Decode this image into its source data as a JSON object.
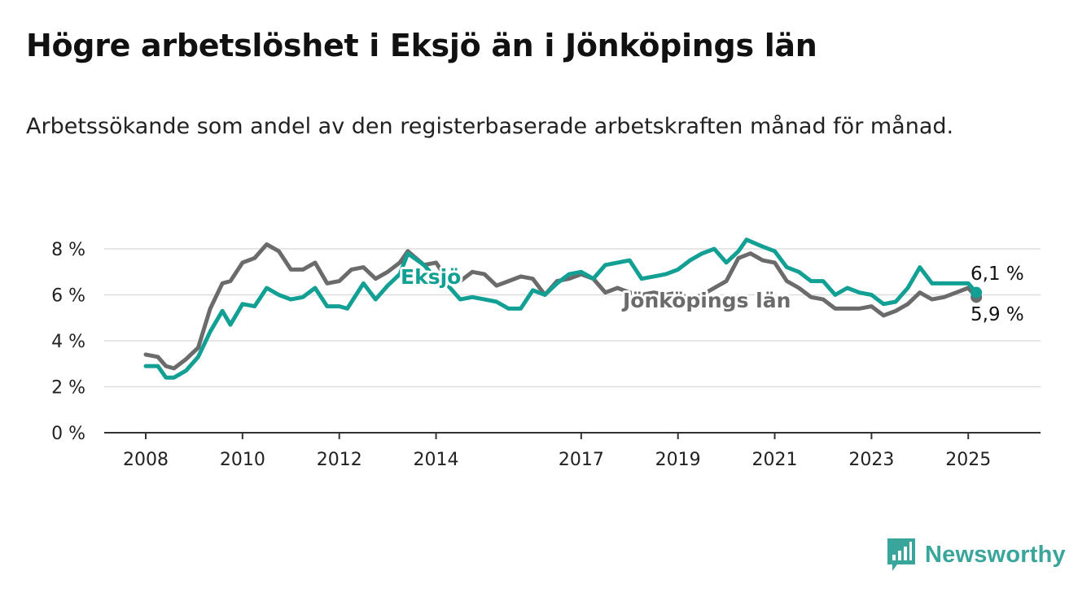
{
  "title": "Högre arbetslöshet i Eksjö än i Jönköpings län",
  "subtitle": "Arbetssökande som andel av den registerbaserade arbetskraften månad för månad.",
  "brand": {
    "name": "Newsworthy",
    "icon": "newsworthy-logo-icon",
    "color": "#3aa59a"
  },
  "chart_data": {
    "type": "line",
    "title": "Högre arbetslöshet i Eksjö än i Jönköpings län",
    "xlabel": "",
    "ylabel": "",
    "ylim": [
      0,
      8
    ],
    "xlim": [
      "2008-01",
      "2025-06"
    ],
    "x_ticks": [
      "2008",
      "2010",
      "2012",
      "2014",
      "2017",
      "2019",
      "2021",
      "2023",
      "2025"
    ],
    "y_ticks": [
      "0 %",
      "2 %",
      "4 %",
      "6 %",
      "8 %"
    ],
    "grid": true,
    "legend": "inline labels",
    "series": [
      {
        "name": "Eksjö",
        "color": "#13a094",
        "end_label": "6,1 %",
        "points": [
          [
            "2008-01",
            2.9
          ],
          [
            "2008-04",
            2.9
          ],
          [
            "2008-06",
            2.4
          ],
          [
            "2008-08",
            2.4
          ],
          [
            "2008-11",
            2.7
          ],
          [
            "2009-02",
            3.3
          ],
          [
            "2009-05",
            4.4
          ],
          [
            "2009-08",
            5.3
          ],
          [
            "2009-10",
            4.7
          ],
          [
            "2010-01",
            5.6
          ],
          [
            "2010-04",
            5.5
          ],
          [
            "2010-07",
            6.3
          ],
          [
            "2010-10",
            6.0
          ],
          [
            "2011-01",
            5.8
          ],
          [
            "2011-04",
            5.9
          ],
          [
            "2011-07",
            6.3
          ],
          [
            "2011-10",
            5.5
          ],
          [
            "2012-01",
            5.5
          ],
          [
            "2012-03",
            5.4
          ],
          [
            "2012-07",
            6.5
          ],
          [
            "2012-10",
            5.8
          ],
          [
            "2013-01",
            6.4
          ],
          [
            "2013-04",
            6.9
          ],
          [
            "2013-06",
            7.8
          ],
          [
            "2013-10",
            7.3
          ],
          [
            "2014-01",
            6.7
          ],
          [
            "2014-04",
            6.4
          ],
          [
            "2014-07",
            5.8
          ],
          [
            "2014-10",
            5.9
          ],
          [
            "2015-01",
            5.8
          ],
          [
            "2015-04",
            5.7
          ],
          [
            "2015-07",
            5.4
          ],
          [
            "2015-10",
            5.4
          ],
          [
            "2016-01",
            6.2
          ],
          [
            "2016-04",
            6.0
          ],
          [
            "2016-07",
            6.5
          ],
          [
            "2016-10",
            6.9
          ],
          [
            "2017-01",
            7.0
          ],
          [
            "2017-04",
            6.7
          ],
          [
            "2017-07",
            7.3
          ],
          [
            "2017-10",
            7.4
          ],
          [
            "2018-01",
            7.5
          ],
          [
            "2018-04",
            6.7
          ],
          [
            "2018-07",
            6.8
          ],
          [
            "2018-10",
            6.9
          ],
          [
            "2019-01",
            7.1
          ],
          [
            "2019-04",
            7.5
          ],
          [
            "2019-07",
            7.8
          ],
          [
            "2019-10",
            8.0
          ],
          [
            "2020-01",
            7.4
          ],
          [
            "2020-04",
            7.9
          ],
          [
            "2020-06",
            8.4
          ],
          [
            "2020-10",
            8.1
          ],
          [
            "2021-01",
            7.9
          ],
          [
            "2021-04",
            7.2
          ],
          [
            "2021-07",
            7.0
          ],
          [
            "2021-10",
            6.6
          ],
          [
            "2022-01",
            6.6
          ],
          [
            "2022-04",
            6.0
          ],
          [
            "2022-07",
            6.3
          ],
          [
            "2022-10",
            6.1
          ],
          [
            "2023-01",
            6.0
          ],
          [
            "2023-04",
            5.6
          ],
          [
            "2023-07",
            5.7
          ],
          [
            "2023-10",
            6.3
          ],
          [
            "2024-01",
            7.2
          ],
          [
            "2024-04",
            6.5
          ],
          [
            "2024-07",
            6.5
          ],
          [
            "2024-10",
            6.5
          ],
          [
            "2025-01",
            6.5
          ],
          [
            "2025-03",
            6.1
          ]
        ]
      },
      {
        "name": "Jönköpings län",
        "color": "#6b6b6b",
        "end_label": "5,9 %",
        "points": [
          [
            "2008-01",
            3.4
          ],
          [
            "2008-04",
            3.3
          ],
          [
            "2008-06",
            2.9
          ],
          [
            "2008-08",
            2.8
          ],
          [
            "2008-11",
            3.2
          ],
          [
            "2009-02",
            3.7
          ],
          [
            "2009-05",
            5.4
          ],
          [
            "2009-08",
            6.5
          ],
          [
            "2009-10",
            6.6
          ],
          [
            "2010-01",
            7.4
          ],
          [
            "2010-04",
            7.6
          ],
          [
            "2010-07",
            8.2
          ],
          [
            "2010-10",
            7.9
          ],
          [
            "2011-01",
            7.1
          ],
          [
            "2011-04",
            7.1
          ],
          [
            "2011-07",
            7.4
          ],
          [
            "2011-10",
            6.5
          ],
          [
            "2012-01",
            6.6
          ],
          [
            "2012-04",
            7.1
          ],
          [
            "2012-07",
            7.2
          ],
          [
            "2012-10",
            6.7
          ],
          [
            "2013-01",
            7.0
          ],
          [
            "2013-04",
            7.4
          ],
          [
            "2013-06",
            7.9
          ],
          [
            "2013-10",
            7.3
          ],
          [
            "2014-01",
            7.4
          ],
          [
            "2014-04",
            6.6
          ],
          [
            "2014-07",
            6.6
          ],
          [
            "2014-10",
            7.0
          ],
          [
            "2015-01",
            6.9
          ],
          [
            "2015-04",
            6.4
          ],
          [
            "2015-07",
            6.6
          ],
          [
            "2015-10",
            6.8
          ],
          [
            "2016-01",
            6.7
          ],
          [
            "2016-04",
            6.0
          ],
          [
            "2016-07",
            6.6
          ],
          [
            "2016-10",
            6.7
          ],
          [
            "2017-01",
            6.9
          ],
          [
            "2017-04",
            6.7
          ],
          [
            "2017-07",
            6.1
          ],
          [
            "2017-10",
            6.3
          ],
          [
            "2018-01",
            6.1
          ],
          [
            "2018-04",
            6.0
          ],
          [
            "2018-07",
            6.1
          ],
          [
            "2018-10",
            6.0
          ],
          [
            "2019-01",
            6.1
          ],
          [
            "2019-04",
            5.8
          ],
          [
            "2019-07",
            6.0
          ],
          [
            "2019-10",
            6.3
          ],
          [
            "2020-01",
            6.6
          ],
          [
            "2020-04",
            7.6
          ],
          [
            "2020-07",
            7.8
          ],
          [
            "2020-10",
            7.5
          ],
          [
            "2021-01",
            7.4
          ],
          [
            "2021-04",
            6.6
          ],
          [
            "2021-07",
            6.3
          ],
          [
            "2021-10",
            5.9
          ],
          [
            "2022-01",
            5.8
          ],
          [
            "2022-04",
            5.4
          ],
          [
            "2022-07",
            5.4
          ],
          [
            "2022-10",
            5.4
          ],
          [
            "2023-01",
            5.5
          ],
          [
            "2023-04",
            5.1
          ],
          [
            "2023-07",
            5.3
          ],
          [
            "2023-10",
            5.6
          ],
          [
            "2024-01",
            6.1
          ],
          [
            "2024-04",
            5.8
          ],
          [
            "2024-07",
            5.9
          ],
          [
            "2024-10",
            6.1
          ],
          [
            "2025-01",
            6.3
          ],
          [
            "2025-03",
            5.9
          ]
        ]
      }
    ]
  }
}
